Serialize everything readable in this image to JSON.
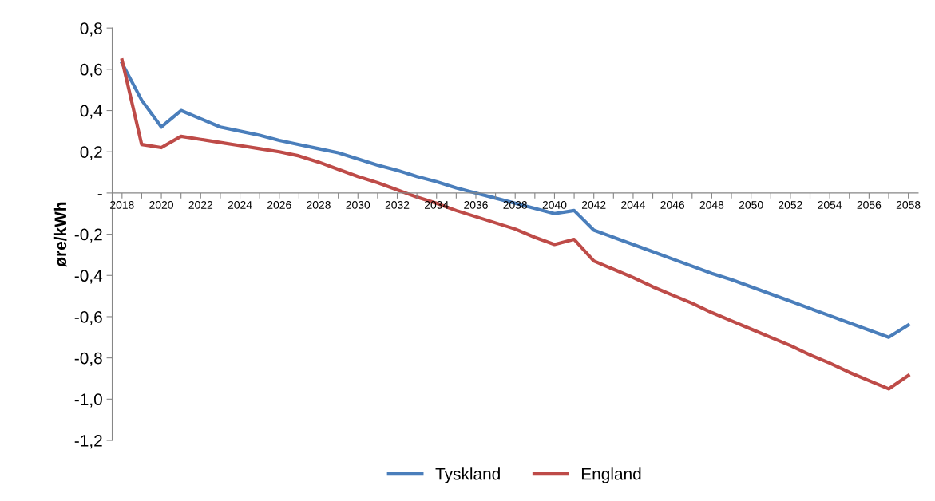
{
  "chart_data": {
    "type": "line",
    "ylabel": "øre/kWh",
    "categories": [
      "2018",
      null,
      "2020",
      null,
      "2022",
      null,
      "2024",
      null,
      "2026",
      null,
      "2028",
      null,
      "2030",
      null,
      "2032",
      null,
      "2034",
      null,
      "2036",
      null,
      "2038",
      null,
      "2040",
      null,
      "2042",
      null,
      "2044",
      null,
      "2046",
      null,
      "2048",
      null,
      "2050",
      null,
      "2052",
      null,
      "2054",
      null,
      "2056",
      null,
      "2058"
    ],
    "series": [
      {
        "name": "Tyskland",
        "color": "#4a7ebb",
        "values": [
          0.63,
          0.45,
          0.32,
          0.4,
          0.36,
          0.32,
          0.3,
          0.28,
          0.255,
          0.235,
          0.215,
          0.195,
          0.165,
          0.135,
          0.11,
          0.08,
          0.055,
          0.025,
          0.0,
          -0.025,
          -0.05,
          -0.075,
          -0.1,
          -0.085,
          -0.18,
          -0.215,
          -0.25,
          -0.285,
          -0.32,
          -0.355,
          -0.39,
          -0.42,
          -0.455,
          -0.49,
          -0.525,
          -0.56,
          -0.595,
          -0.63,
          -0.665,
          -0.7,
          -0.64
        ]
      },
      {
        "name": "England",
        "color": "#be4b48",
        "values": [
          0.645,
          0.235,
          0.22,
          0.275,
          0.26,
          0.245,
          0.23,
          0.215,
          0.2,
          0.18,
          0.15,
          0.115,
          0.08,
          0.05,
          0.015,
          -0.02,
          -0.05,
          -0.085,
          -0.115,
          -0.145,
          -0.175,
          -0.215,
          -0.25,
          -0.225,
          -0.33,
          -0.37,
          -0.41,
          -0.455,
          -0.495,
          -0.535,
          -0.58,
          -0.62,
          -0.66,
          -0.7,
          -0.74,
          -0.785,
          -0.825,
          -0.87,
          -0.91,
          -0.95,
          -0.885
        ]
      }
    ],
    "ylim": [
      -1.2,
      0.8
    ],
    "yticks": [
      {
        "value": -1.2,
        "label": "-1,2"
      },
      {
        "value": -1.0,
        "label": "-1,0"
      },
      {
        "value": -0.8,
        "label": "-0,8"
      },
      {
        "value": -0.6,
        "label": "-0,6"
      },
      {
        "value": -0.4,
        "label": "-0,4"
      },
      {
        "value": -0.2,
        "label": "-0,2"
      },
      {
        "value": 0,
        "label": "-"
      },
      {
        "value": 0.2,
        "label": "0,2"
      },
      {
        "value": 0.4,
        "label": "0,4"
      },
      {
        "value": 0.6,
        "label": "0,6"
      },
      {
        "value": 0.8,
        "label": "0,8"
      }
    ],
    "grid": false,
    "legend": "bottom",
    "marker": "none",
    "line_style": "solid"
  }
}
